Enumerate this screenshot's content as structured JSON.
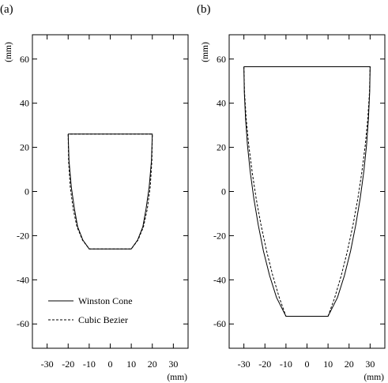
{
  "chart_data": [
    {
      "type": "line",
      "panel_label": "(a)",
      "ylabel": "(mm)",
      "xlabel": "(mm)",
      "xlim": [
        -37,
        37
      ],
      "ylim": [
        -71,
        71
      ],
      "xticks": [
        -30,
        -20,
        -10,
        0,
        10,
        20,
        30
      ],
      "yticks": [
        -60,
        -40,
        -20,
        0,
        20,
        40,
        60
      ],
      "legend": {
        "position": "bottom-left",
        "entries": [
          "Winston Cone",
          "Cubic Bezier"
        ]
      },
      "series": [
        {
          "name": "Winston Cone",
          "style": "solid",
          "points": [
            [
              -20,
              26
            ],
            [
              -19.6,
              14
            ],
            [
              -18.5,
              2
            ],
            [
              -17,
              -8
            ],
            [
              -15.5,
              -16
            ],
            [
              -13,
              -22
            ],
            [
              -10,
              -26
            ],
            [
              10,
              -26
            ],
            [
              13,
              -22
            ],
            [
              15.5,
              -16
            ],
            [
              17,
              -8
            ],
            [
              18.5,
              2
            ],
            [
              19.6,
              14
            ],
            [
              20,
              26
            ],
            [
              -20,
              26
            ]
          ]
        },
        {
          "name": "Cubic Bezier",
          "style": "dashed",
          "points": [
            [
              -20,
              26
            ],
            [
              -19.8,
              14
            ],
            [
              -19,
              2
            ],
            [
              -17.6,
              -8
            ],
            [
              -15.8,
              -16
            ],
            [
              -13.2,
              -22
            ],
            [
              -10,
              -26
            ],
            [
              10,
              -26
            ],
            [
              13.2,
              -22
            ],
            [
              15.8,
              -16
            ],
            [
              17.6,
              -8
            ],
            [
              19,
              2
            ],
            [
              19.8,
              14
            ],
            [
              20,
              26
            ],
            [
              -20,
              26
            ]
          ]
        }
      ]
    },
    {
      "type": "line",
      "panel_label": "(b)",
      "ylabel": "(mm)",
      "xlabel": "(mm)",
      "xlim": [
        -37,
        37
      ],
      "ylim": [
        -71,
        71
      ],
      "xticks": [
        -30,
        -20,
        -10,
        0,
        10,
        20,
        30
      ],
      "yticks": [
        -60,
        -40,
        -20,
        0,
        20,
        40,
        60
      ],
      "series": [
        {
          "name": "Winston Cone",
          "style": "solid",
          "points": [
            [
              -30,
              56.5
            ],
            [
              -29.8,
              45
            ],
            [
              -29.2,
              33
            ],
            [
              -28.3,
              21
            ],
            [
              -27,
              9
            ],
            [
              -25.3,
              -3
            ],
            [
              -23.2,
              -15
            ],
            [
              -20.7,
              -27
            ],
            [
              -17.8,
              -38
            ],
            [
              -14.5,
              -48
            ],
            [
              -10,
              -56.5
            ],
            [
              10,
              -56.5
            ],
            [
              14.5,
              -48
            ],
            [
              17.8,
              -38
            ],
            [
              20.7,
              -27
            ],
            [
              23.2,
              -15
            ],
            [
              25.3,
              -3
            ],
            [
              27,
              9
            ],
            [
              28.3,
              21
            ],
            [
              29.2,
              33
            ],
            [
              29.8,
              45
            ],
            [
              30,
              56.5
            ],
            [
              -30,
              56.5
            ]
          ]
        },
        {
          "name": "Cubic Bezier",
          "style": "dashed",
          "points": [
            [
              -30,
              56.5
            ],
            [
              -29.7,
              45
            ],
            [
              -28.9,
              33
            ],
            [
              -27.7,
              21
            ],
            [
              -26.1,
              9
            ],
            [
              -24.2,
              -3
            ],
            [
              -21.9,
              -15
            ],
            [
              -19.2,
              -27
            ],
            [
              -16.3,
              -38
            ],
            [
              -13.2,
              -48
            ],
            [
              -10,
              -56.5
            ],
            [
              10,
              -56.5
            ],
            [
              13.2,
              -48
            ],
            [
              16.3,
              -38
            ],
            [
              19.2,
              -27
            ],
            [
              21.9,
              -15
            ],
            [
              24.2,
              -3
            ],
            [
              26.1,
              9
            ],
            [
              27.7,
              21
            ],
            [
              28.9,
              33
            ],
            [
              29.7,
              45
            ],
            [
              30,
              56.5
            ],
            [
              -30,
              56.5
            ]
          ]
        }
      ]
    }
  ]
}
